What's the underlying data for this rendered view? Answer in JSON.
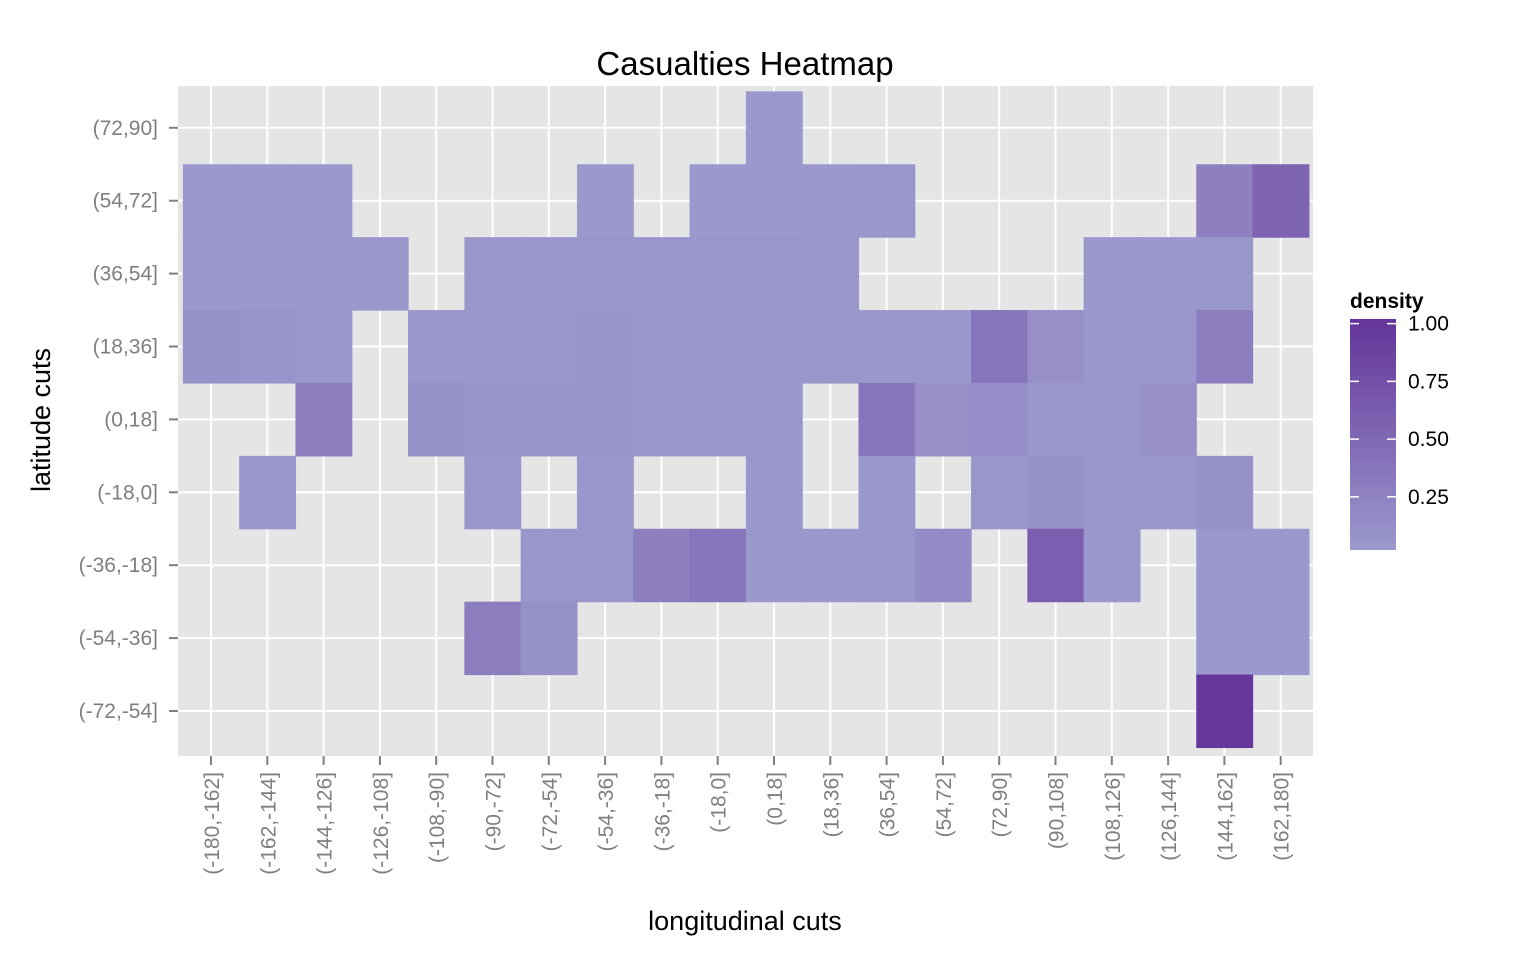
{
  "chart_data": {
    "type": "heatmap",
    "title": "Casualties Heatmap",
    "xlabel": "longitudinal cuts",
    "ylabel": "latitude cuts",
    "x_categories": [
      "(-180,-162]",
      "(-162,-144]",
      "(-144,-126]",
      "(-126,-108]",
      "(-108,-90]",
      "(-90,-72]",
      "(-72,-54]",
      "(-54,-36]",
      "(-36,-18]",
      "(-18,0]",
      "(0,18]",
      "(18,36]",
      "(36,54]",
      "(54,72]",
      "(72,90]",
      "(90,108]",
      "(108,126]",
      "(126,144]",
      "(144,162]",
      "(162,180]"
    ],
    "y_categories": [
      "(-72,-54]",
      "(-54,-36]",
      "(-36,-18]",
      "(-18,0]",
      "(0,18]",
      "(18,36]",
      "(36,54]",
      "(54,72]",
      "(72,90]"
    ],
    "cells": [
      {
        "x": "(0,18]",
        "y": "(72,90]",
        "value": 0.03
      },
      {
        "x": "(-180,-162]",
        "y": "(54,72]",
        "value": 0.03
      },
      {
        "x": "(-162,-144]",
        "y": "(54,72]",
        "value": 0.03
      },
      {
        "x": "(-144,-126]",
        "y": "(54,72]",
        "value": 0.03
      },
      {
        "x": "(-54,-36]",
        "y": "(54,72]",
        "value": 0.03
      },
      {
        "x": "(-18,0]",
        "y": "(54,72]",
        "value": 0.03
      },
      {
        "x": "(0,18]",
        "y": "(54,72]",
        "value": 0.03
      },
      {
        "x": "(18,36]",
        "y": "(54,72]",
        "value": 0.03
      },
      {
        "x": "(36,54]",
        "y": "(54,72]",
        "value": 0.05
      },
      {
        "x": "(144,162]",
        "y": "(54,72]",
        "value": 0.28
      },
      {
        "x": "(162,180]",
        "y": "(54,72]",
        "value": 0.55
      },
      {
        "x": "(-180,-162]",
        "y": "(36,54]",
        "value": 0.03
      },
      {
        "x": "(-162,-144]",
        "y": "(36,54]",
        "value": 0.03
      },
      {
        "x": "(-144,-126]",
        "y": "(36,54]",
        "value": 0.04
      },
      {
        "x": "(-126,-108]",
        "y": "(36,54]",
        "value": 0.04
      },
      {
        "x": "(-90,-72]",
        "y": "(36,54]",
        "value": 0.04
      },
      {
        "x": "(-72,-54]",
        "y": "(36,54]",
        "value": 0.04
      },
      {
        "x": "(-54,-36]",
        "y": "(36,54]",
        "value": 0.05
      },
      {
        "x": "(-36,-18]",
        "y": "(36,54]",
        "value": 0.05
      },
      {
        "x": "(-18,0]",
        "y": "(36,54]",
        "value": 0.05
      },
      {
        "x": "(0,18]",
        "y": "(36,54]",
        "value": 0.05
      },
      {
        "x": "(18,36]",
        "y": "(36,54]",
        "value": 0.04
      },
      {
        "x": "(108,126]",
        "y": "(36,54]",
        "value": 0.03
      },
      {
        "x": "(126,144]",
        "y": "(36,54]",
        "value": 0.03
      },
      {
        "x": "(144,162]",
        "y": "(36,54]",
        "value": 0.04
      },
      {
        "x": "(-180,-162]",
        "y": "(18,36]",
        "value": 0.1
      },
      {
        "x": "(-162,-144]",
        "y": "(18,36]",
        "value": 0.08
      },
      {
        "x": "(-144,-126]",
        "y": "(18,36]",
        "value": 0.05
      },
      {
        "x": "(-108,-90]",
        "y": "(18,36]",
        "value": 0.04
      },
      {
        "x": "(-90,-72]",
        "y": "(18,36]",
        "value": 0.04
      },
      {
        "x": "(-72,-54]",
        "y": "(18,36]",
        "value": 0.05
      },
      {
        "x": "(-54,-36]",
        "y": "(18,36]",
        "value": 0.08
      },
      {
        "x": "(-36,-18]",
        "y": "(18,36]",
        "value": 0.05
      },
      {
        "x": "(-18,0]",
        "y": "(18,36]",
        "value": 0.05
      },
      {
        "x": "(0,18]",
        "y": "(18,36]",
        "value": 0.05
      },
      {
        "x": "(18,36]",
        "y": "(18,36]",
        "value": 0.05
      },
      {
        "x": "(36,54]",
        "y": "(18,36]",
        "value": 0.04
      },
      {
        "x": "(54,72]",
        "y": "(18,36]",
        "value": 0.04
      },
      {
        "x": "(72,90]",
        "y": "(18,36]",
        "value": 0.38
      },
      {
        "x": "(90,108]",
        "y": "(18,36]",
        "value": 0.12
      },
      {
        "x": "(108,126]",
        "y": "(18,36]",
        "value": 0.04
      },
      {
        "x": "(126,144]",
        "y": "(18,36]",
        "value": 0.04
      },
      {
        "x": "(144,162]",
        "y": "(18,36]",
        "value": 0.3
      },
      {
        "x": "(-144,-126]",
        "y": "(0,18]",
        "value": 0.3
      },
      {
        "x": "(-108,-90]",
        "y": "(0,18]",
        "value": 0.1
      },
      {
        "x": "(-90,-72]",
        "y": "(0,18]",
        "value": 0.08
      },
      {
        "x": "(-72,-54]",
        "y": "(0,18]",
        "value": 0.06
      },
      {
        "x": "(-54,-36]",
        "y": "(0,18]",
        "value": 0.08
      },
      {
        "x": "(-36,-18]",
        "y": "(0,18]",
        "value": 0.05
      },
      {
        "x": "(-18,0]",
        "y": "(0,18]",
        "value": 0.05
      },
      {
        "x": "(0,18]",
        "y": "(0,18]",
        "value": 0.05
      },
      {
        "x": "(36,54]",
        "y": "(0,18]",
        "value": 0.38
      },
      {
        "x": "(54,72]",
        "y": "(0,18]",
        "value": 0.12
      },
      {
        "x": "(72,90]",
        "y": "(0,18]",
        "value": 0.14
      },
      {
        "x": "(90,108]",
        "y": "(0,18]",
        "value": 0.05
      },
      {
        "x": "(108,126]",
        "y": "(0,18]",
        "value": 0.05
      },
      {
        "x": "(126,144]",
        "y": "(0,18]",
        "value": 0.12
      },
      {
        "x": "(-162,-144]",
        "y": "(-18,0]",
        "value": 0.03
      },
      {
        "x": "(-90,-72]",
        "y": "(-18,0]",
        "value": 0.04
      },
      {
        "x": "(-54,-36]",
        "y": "(-18,0]",
        "value": 0.04
      },
      {
        "x": "(0,18]",
        "y": "(-18,0]",
        "value": 0.04
      },
      {
        "x": "(36,54]",
        "y": "(-18,0]",
        "value": 0.04
      },
      {
        "x": "(72,90]",
        "y": "(-18,0]",
        "value": 0.05
      },
      {
        "x": "(90,108]",
        "y": "(-18,0]",
        "value": 0.1
      },
      {
        "x": "(108,126]",
        "y": "(-18,0]",
        "value": 0.05
      },
      {
        "x": "(126,144]",
        "y": "(-18,0]",
        "value": 0.05
      },
      {
        "x": "(144,162]",
        "y": "(-18,0]",
        "value": 0.1
      },
      {
        "x": "(-72,-54]",
        "y": "(-36,-18]",
        "value": 0.05
      },
      {
        "x": "(-54,-36]",
        "y": "(-36,-18]",
        "value": 0.05
      },
      {
        "x": "(-36,-18]",
        "y": "(-36,-18]",
        "value": 0.28
      },
      {
        "x": "(-18,0]",
        "y": "(-36,-18]",
        "value": 0.38
      },
      {
        "x": "(0,18]",
        "y": "(-36,-18]",
        "value": 0.04
      },
      {
        "x": "(18,36]",
        "y": "(-36,-18]",
        "value": 0.04
      },
      {
        "x": "(36,54]",
        "y": "(-36,-18]",
        "value": 0.05
      },
      {
        "x": "(54,72]",
        "y": "(-36,-18]",
        "value": 0.15
      },
      {
        "x": "(90,108]",
        "y": "(-36,-18]",
        "value": 0.6
      },
      {
        "x": "(108,126]",
        "y": "(-36,-18]",
        "value": 0.04
      },
      {
        "x": "(144,162]",
        "y": "(-36,-18]",
        "value": 0.03
      },
      {
        "x": "(162,180]",
        "y": "(-36,-18]",
        "value": 0.03
      },
      {
        "x": "(-90,-72]",
        "y": "(-54,-36]",
        "value": 0.3
      },
      {
        "x": "(-72,-54]",
        "y": "(-54,-36]",
        "value": 0.1
      },
      {
        "x": "(144,162]",
        "y": "(-54,-36]",
        "value": 0.03
      },
      {
        "x": "(162,180]",
        "y": "(-54,-36]",
        "value": 0.03
      },
      {
        "x": "(144,162]",
        "y": "(-72,-54]",
        "value": 1.0
      }
    ],
    "color_scale": {
      "low": "#9b99cd",
      "high": "#64349a",
      "range": [
        0.02,
        1.02
      ]
    },
    "legend": {
      "title": "density",
      "breaks": [
        {
          "value": 0.25,
          "label": "0.25"
        },
        {
          "value": 0.5,
          "label": "0.50"
        },
        {
          "value": 0.75,
          "label": "0.75"
        },
        {
          "value": 1.0,
          "label": "1.00"
        }
      ],
      "placement": "right"
    },
    "panel_background": "#e5e5e5",
    "grid_color": "#ffffff",
    "grid": true
  }
}
